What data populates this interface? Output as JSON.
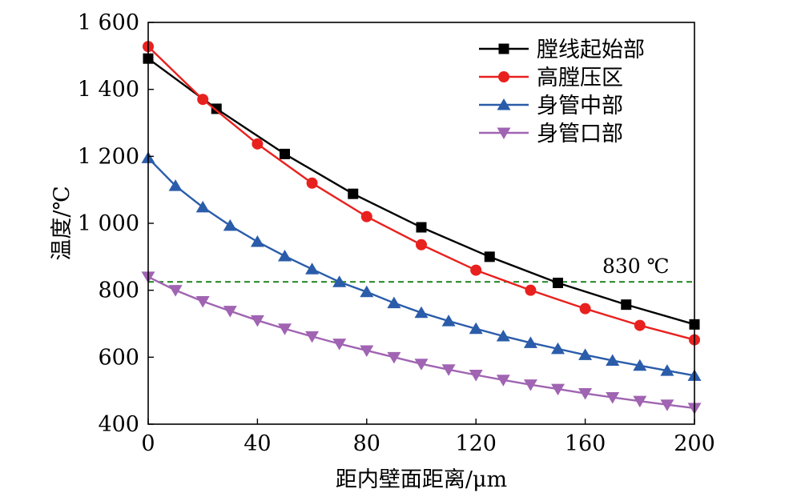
{
  "chart_data": {
    "type": "line",
    "title": "",
    "xlabel": "距内壁面距离/μm",
    "ylabel": "温度/℃",
    "xlim": [
      0,
      200
    ],
    "ylim": [
      400,
      1600
    ],
    "xticks": [
      0,
      40,
      80,
      120,
      160,
      200
    ],
    "yticks": [
      400,
      600,
      800,
      1000,
      1200,
      1400,
      1600
    ],
    "xtick_labels": [
      "0",
      "40",
      "80",
      "120",
      "160",
      "200"
    ],
    "ytick_labels": [
      "400",
      "600",
      "800",
      "1 000",
      "1 200",
      "1 400",
      "1 600"
    ],
    "grid": false,
    "legend_position": "top-right",
    "series": [
      {
        "name": "膛线起始部",
        "color": "#000000",
        "marker": "square",
        "x": [
          0,
          25,
          50,
          75,
          100,
          125,
          150,
          175,
          200
        ],
        "y": [
          1492,
          1342,
          1207,
          1088,
          988,
          900,
          822,
          757,
          698
        ]
      },
      {
        "name": "高膛压区",
        "color": "#e8211f",
        "marker": "circle",
        "x": [
          0,
          20,
          40,
          60,
          80,
          100,
          120,
          140,
          160,
          180,
          200
        ],
        "y": [
          1528,
          1370,
          1237,
          1120,
          1020,
          936,
          860,
          800,
          745,
          695,
          652
        ]
      },
      {
        "name": "身管中部",
        "color": "#2a5caa",
        "marker": "triangle-up",
        "x": [
          0,
          10,
          20,
          30,
          40,
          50,
          60,
          70,
          80,
          90,
          100,
          110,
          120,
          130,
          140,
          150,
          160,
          170,
          180,
          190,
          200
        ],
        "y": [
          1195,
          1112,
          1048,
          993,
          945,
          902,
          863,
          825,
          795,
          762,
          733,
          708,
          685,
          663,
          643,
          625,
          607,
          590,
          575,
          560,
          545
        ]
      },
      {
        "name": "身管口部",
        "color": "#a064b2",
        "marker": "triangle-down",
        "x": [
          0,
          10,
          20,
          30,
          40,
          50,
          60,
          70,
          80,
          90,
          100,
          110,
          120,
          130,
          140,
          150,
          160,
          170,
          180,
          190,
          200
        ],
        "y": [
          840,
          800,
          767,
          738,
          710,
          685,
          662,
          640,
          620,
          600,
          580,
          563,
          547,
          532,
          518,
          505,
          492,
          480,
          469,
          458,
          448
        ]
      }
    ],
    "reference_line": {
      "y": 825,
      "color": "#2d8a2d",
      "style": "dashed",
      "label": "830 ℃"
    }
  }
}
